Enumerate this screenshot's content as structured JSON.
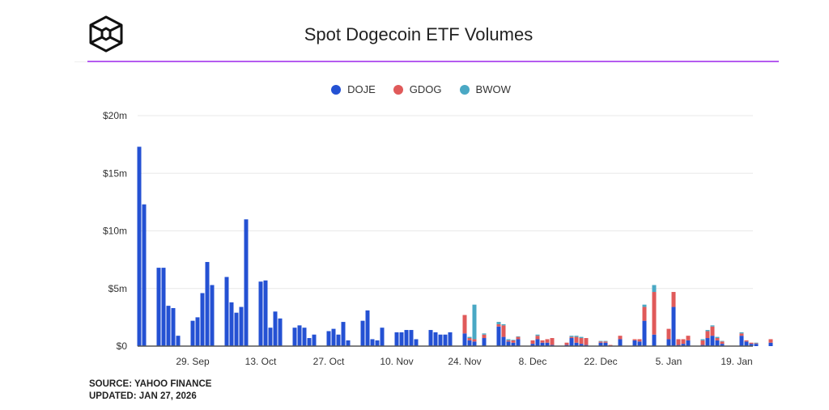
{
  "title": "Spot Dogecoin ETF Volumes",
  "footer": {
    "source": "SOURCE: YAHOO FINANCE",
    "updated": "UPDATED: JAN 27, 2026"
  },
  "chart_data": {
    "type": "bar",
    "stacked": true,
    "title": "Spot Dogecoin ETF Volumes",
    "ylim": [
      0,
      20
    ],
    "y_unit": "$m",
    "y_ticks": [
      {
        "v": 0,
        "label": "$0"
      },
      {
        "v": 5,
        "label": "$5m"
      },
      {
        "v": 10,
        "label": "$10m"
      },
      {
        "v": 15,
        "label": "$15m"
      },
      {
        "v": 20,
        "label": "$20m"
      }
    ],
    "x_ticks": [
      {
        "date": "2025-09-29",
        "label": "29. Sep"
      },
      {
        "date": "2025-10-13",
        "label": "13. Oct"
      },
      {
        "date": "2025-10-27",
        "label": "27. Oct"
      },
      {
        "date": "2025-11-10",
        "label": "10. Nov"
      },
      {
        "date": "2025-11-24",
        "label": "24. Nov"
      },
      {
        "date": "2025-12-08",
        "label": "8. Dec"
      },
      {
        "date": "2025-12-22",
        "label": "22. Dec"
      },
      {
        "date": "2026-01-05",
        "label": "5. Jan"
      },
      {
        "date": "2026-01-19",
        "label": "19. Jan"
      }
    ],
    "grid": true,
    "legend_placement": "top",
    "series": [
      {
        "name": "DOJE",
        "color": "#2451d3"
      },
      {
        "name": "GDOG",
        "color": "#e05a5a"
      },
      {
        "name": "BWOW",
        "color": "#4aa8c4"
      }
    ],
    "x": [
      "2025-09-18",
      "2025-09-19",
      "2025-09-22",
      "2025-09-23",
      "2025-09-24",
      "2025-09-25",
      "2025-09-26",
      "2025-09-29",
      "2025-09-30",
      "2025-10-01",
      "2025-10-02",
      "2025-10-03",
      "2025-10-06",
      "2025-10-07",
      "2025-10-08",
      "2025-10-09",
      "2025-10-10",
      "2025-10-13",
      "2025-10-14",
      "2025-10-15",
      "2025-10-16",
      "2025-10-17",
      "2025-10-20",
      "2025-10-21",
      "2025-10-22",
      "2025-10-23",
      "2025-10-24",
      "2025-10-27",
      "2025-10-28",
      "2025-10-29",
      "2025-10-30",
      "2025-10-31",
      "2025-11-03",
      "2025-11-04",
      "2025-11-05",
      "2025-11-06",
      "2025-11-07",
      "2025-11-10",
      "2025-11-11",
      "2025-11-12",
      "2025-11-13",
      "2025-11-14",
      "2025-11-17",
      "2025-11-18",
      "2025-11-19",
      "2025-11-20",
      "2025-11-21",
      "2025-11-24",
      "2025-11-25",
      "2025-11-26",
      "2025-11-28",
      "2025-12-01",
      "2025-12-02",
      "2025-12-03",
      "2025-12-04",
      "2025-12-05",
      "2025-12-08",
      "2025-12-09",
      "2025-12-10",
      "2025-12-11",
      "2025-12-12",
      "2025-12-15",
      "2025-12-16",
      "2025-12-17",
      "2025-12-18",
      "2025-12-19",
      "2025-12-22",
      "2025-12-23",
      "2025-12-24",
      "2025-12-26",
      "2025-12-29",
      "2025-12-30",
      "2025-12-31",
      "2026-01-02",
      "2026-01-05",
      "2026-01-06",
      "2026-01-07",
      "2026-01-08",
      "2026-01-09",
      "2026-01-12",
      "2026-01-13",
      "2026-01-14",
      "2026-01-15",
      "2026-01-16",
      "2026-01-20",
      "2026-01-21",
      "2026-01-22",
      "2026-01-23",
      "2026-01-26"
    ],
    "values": {
      "DOJE": [
        17.3,
        12.3,
        6.8,
        6.8,
        3.5,
        3.3,
        0.9,
        2.2,
        2.5,
        4.6,
        7.3,
        5.3,
        6.0,
        3.8,
        2.9,
        3.4,
        11.0,
        5.6,
        5.7,
        1.6,
        3.0,
        2.4,
        1.6,
        1.8,
        1.6,
        0.7,
        1.0,
        1.3,
        1.5,
        1.0,
        2.1,
        0.5,
        2.2,
        3.1,
        0.6,
        0.5,
        1.6,
        1.2,
        1.2,
        1.4,
        1.4,
        0.6,
        1.4,
        1.2,
        1.0,
        1.0,
        1.2,
        1.1,
        0.5,
        0.4,
        0.7,
        1.7,
        0.8,
        0.4,
        0.3,
        0.6,
        0.2,
        0.6,
        0.3,
        0.3,
        0.1,
        0.1,
        0.7,
        0.3,
        0.2,
        0.1,
        0.3,
        0.3,
        0.0,
        0.6,
        0.5,
        0.4,
        2.2,
        1.0,
        0.6,
        3.4,
        0.1,
        0.2,
        0.5,
        0.1,
        0.7,
        0.9,
        0.5,
        0.2,
        0.9,
        0.4,
        0.2,
        0.2,
        0.3
      ],
      "GDOG": [
        0,
        0,
        0,
        0,
        0,
        0,
        0,
        0,
        0,
        0,
        0,
        0,
        0,
        0,
        0,
        0,
        0,
        0,
        0,
        0,
        0,
        0,
        0,
        0,
        0,
        0,
        0,
        0,
        0,
        0,
        0,
        0,
        0,
        0,
        0,
        0,
        0,
        0,
        0,
        0,
        0,
        0,
        0,
        0,
        0,
        0,
        0,
        1.6,
        0.2,
        0.2,
        0.3,
        0.2,
        1.0,
        0.1,
        0.2,
        0.2,
        0.3,
        0.3,
        0.2,
        0.3,
        0.6,
        0.2,
        0.1,
        0.5,
        0.5,
        0.6,
        0.1,
        0.1,
        0.1,
        0.3,
        0.1,
        0.2,
        1.2,
        3.7,
        0.9,
        1.3,
        0.5,
        0.4,
        0.4,
        0.4,
        0.6,
        0.8,
        0.2,
        0.2,
        0.2,
        0.1,
        0.1,
        0.05,
        0.3
      ],
      "BWOW": [
        0,
        0,
        0,
        0,
        0,
        0,
        0,
        0,
        0,
        0,
        0,
        0,
        0,
        0,
        0,
        0,
        0,
        0,
        0,
        0,
        0,
        0,
        0,
        0,
        0,
        0,
        0,
        0,
        0,
        0,
        0,
        0,
        0,
        0,
        0,
        0,
        0,
        0,
        0,
        0,
        0,
        0,
        0,
        0,
        0,
        0,
        0,
        0,
        0.1,
        3.0,
        0.1,
        0.2,
        0.1,
        0.1,
        0.05,
        0.05,
        0.0,
        0.1,
        0.0,
        0.0,
        0.0,
        0.0,
        0.1,
        0.1,
        0.1,
        0.0,
        0.05,
        0.05,
        0.0,
        0.0,
        0.0,
        0.0,
        0.2,
        0.6,
        0.0,
        0.0,
        0.0,
        0.0,
        0.0,
        0.1,
        0.1,
        0.1,
        0.1,
        0.05,
        0.1,
        0.0,
        0.0,
        0.05,
        0.0
      ]
    }
  }
}
